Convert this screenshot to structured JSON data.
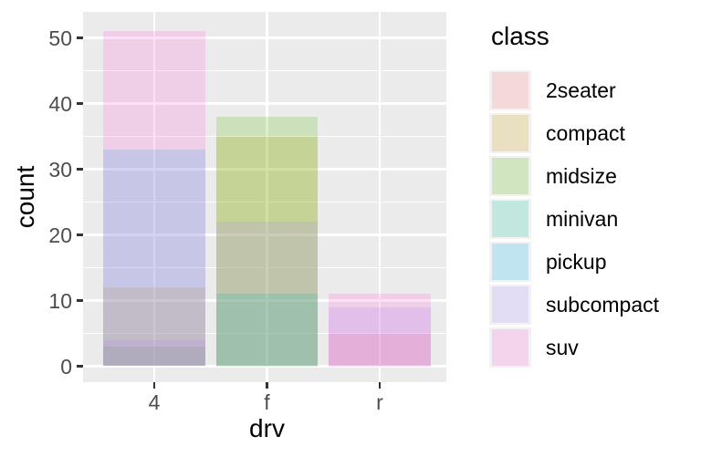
{
  "chart_data": {
    "type": "bar",
    "variant": "overlapping-identity",
    "title": "",
    "xlabel": "drv",
    "ylabel": "count",
    "categories": [
      "4",
      "f",
      "r"
    ],
    "series": [
      {
        "name": "2seater",
        "color": "#F8766D",
        "values": [
          0,
          0,
          5
        ]
      },
      {
        "name": "compact",
        "color": "#C49A00",
        "values": [
          12,
          35,
          0
        ]
      },
      {
        "name": "midsize",
        "color": "#53B400",
        "values": [
          3,
          38,
          0
        ]
      },
      {
        "name": "minivan",
        "color": "#00C094",
        "values": [
          0,
          11,
          0
        ]
      },
      {
        "name": "pickup",
        "color": "#00B6EB",
        "values": [
          33,
          0,
          0
        ]
      },
      {
        "name": "subcompact",
        "color": "#A58AFF",
        "values": [
          4,
          22,
          9
        ]
      },
      {
        "name": "suv",
        "color": "#FB61D7",
        "values": [
          51,
          0,
          11
        ]
      }
    ],
    "fill_alpha": 0.2,
    "ylim": [
      0,
      54
    ],
    "yticks_major": [
      0,
      10,
      20,
      30,
      40,
      50
    ],
    "yticks_minor": [
      5,
      15,
      25,
      35,
      45
    ],
    "y_tick_labels": [
      "0",
      "10",
      "20",
      "30",
      "40",
      "50"
    ],
    "x_tick_labels": [
      "4",
      "f",
      "r"
    ],
    "legend": {
      "title": "class",
      "position": "right"
    },
    "grid": true,
    "panel_background": "#EBEBEB",
    "gridline_color": "#FFFFFF",
    "legend_key_background": "#F2F2F2",
    "tick_mark_color": "#333333",
    "tick_label_color": "#4D4D4D"
  }
}
